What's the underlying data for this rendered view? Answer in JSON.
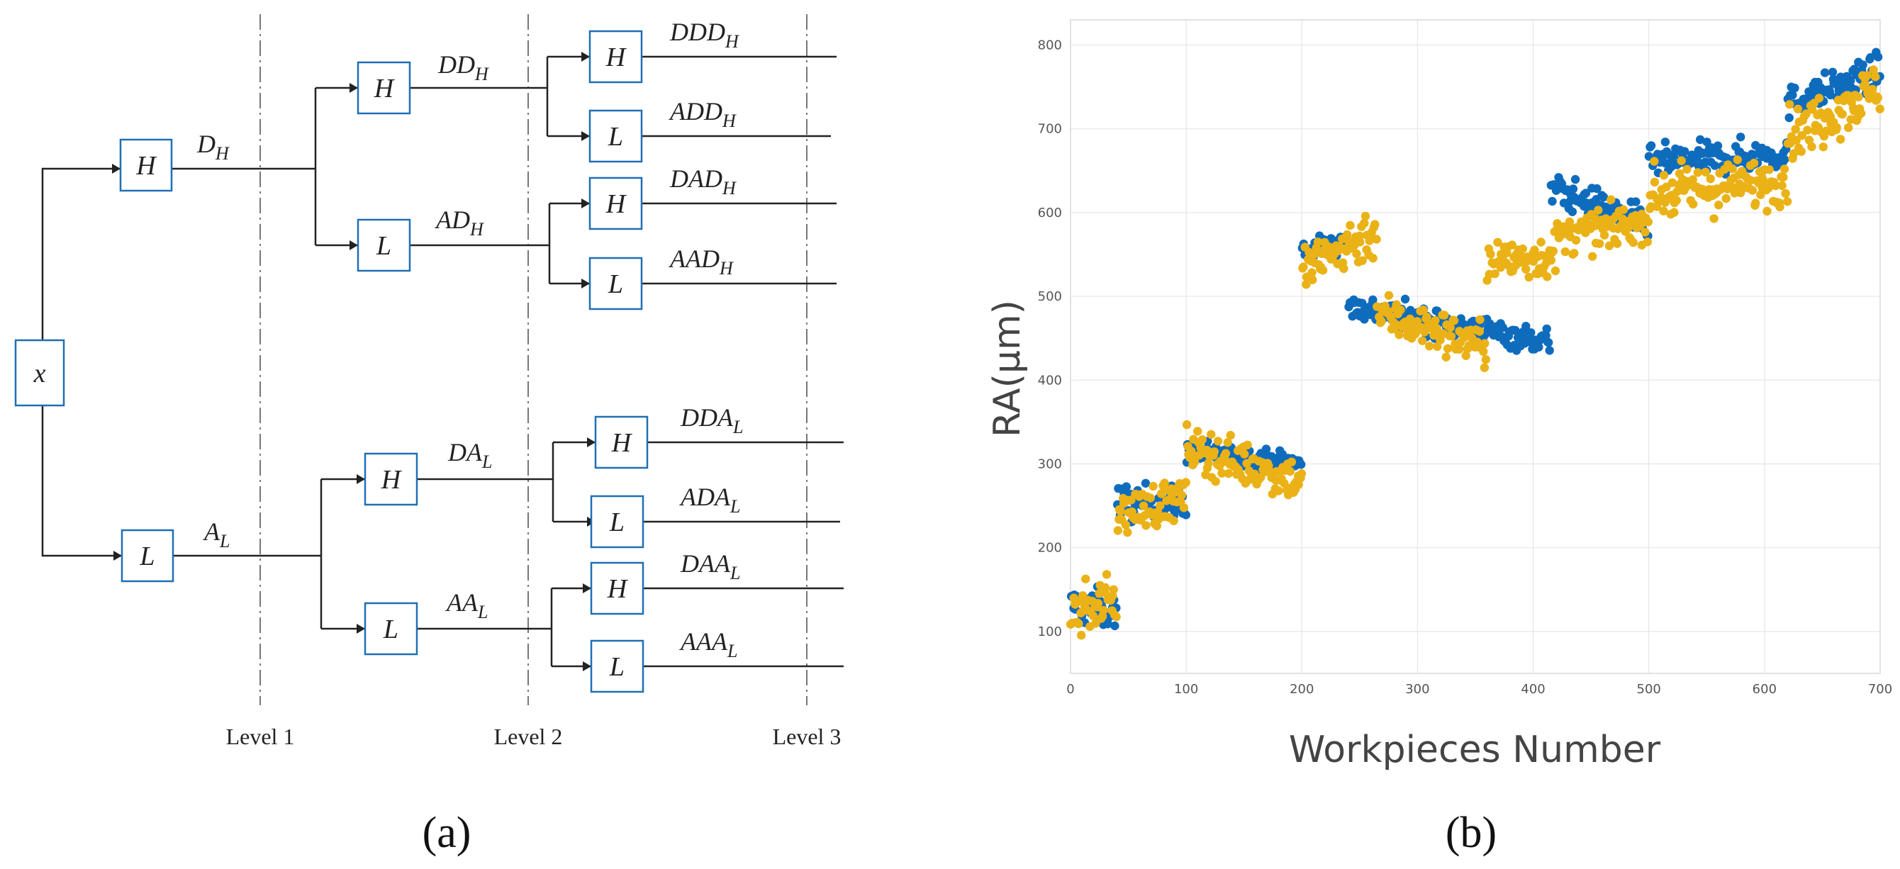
{
  "panel_a": {
    "label": "(a)",
    "nodes": [
      {
        "id": "x",
        "text": "x",
        "name": "node-x"
      },
      {
        "id": "h1",
        "text": "H",
        "name": "node-h-level1"
      },
      {
        "id": "l1",
        "text": "L",
        "name": "node-l-level1"
      },
      {
        "id": "h2a",
        "text": "H",
        "name": "node-h-level2-top"
      },
      {
        "id": "l2a",
        "text": "L",
        "name": "node-l-level2-top"
      },
      {
        "id": "h2b",
        "text": "H",
        "name": "node-h-level2-bottom"
      },
      {
        "id": "l2b",
        "text": "L",
        "name": "node-l-level2-bottom"
      },
      {
        "id": "h3a",
        "text": "H",
        "name": "node-h-level3-1"
      },
      {
        "id": "l3a",
        "text": "L",
        "name": "node-l-level3-2"
      },
      {
        "id": "h3b",
        "text": "H",
        "name": "node-h-level3-3"
      },
      {
        "id": "l3b",
        "text": "L",
        "name": "node-l-level3-4"
      },
      {
        "id": "h3c",
        "text": "H",
        "name": "node-h-level3-5"
      },
      {
        "id": "l3c",
        "text": "L",
        "name": "node-l-level3-6"
      },
      {
        "id": "h3d",
        "text": "H",
        "name": "node-h-level3-7"
      },
      {
        "id": "l3d",
        "text": "L",
        "name": "node-l-level3-8"
      }
    ],
    "coefficients": [
      {
        "base": "D",
        "sub": "H"
      },
      {
        "base": "A",
        "sub": "L"
      },
      {
        "base": "DD",
        "sub": "H"
      },
      {
        "base": "AD",
        "sub": "H"
      },
      {
        "base": "DA",
        "sub": "L"
      },
      {
        "base": "AA",
        "sub": "L"
      },
      {
        "base": "DDD",
        "sub": "H"
      },
      {
        "base": "ADD",
        "sub": "H"
      },
      {
        "base": "DAD",
        "sub": "H"
      },
      {
        "base": "AAD",
        "sub": "H"
      },
      {
        "base": "DDA",
        "sub": "L"
      },
      {
        "base": "ADA",
        "sub": "L"
      },
      {
        "base": "DAA",
        "sub": "L"
      },
      {
        "base": "AAA",
        "sub": "L"
      }
    ],
    "levels": [
      "Level 1",
      "Level 2",
      "Level 3"
    ]
  },
  "panel_b": {
    "label": "(b)",
    "chart_data": {
      "type": "scatter",
      "xlabel": "Workpieces Number",
      "ylabel": "RA(μm)",
      "xlim": [
        0,
        700
      ],
      "ylim": [
        50,
        830
      ],
      "xticks": [
        0,
        100,
        200,
        300,
        400,
        500,
        600,
        700
      ],
      "yticks": [
        100,
        200,
        300,
        400,
        500,
        600,
        700,
        800
      ],
      "grid": true,
      "colors": {
        "series1": "#0f6cbd",
        "series2": "#eab217"
      },
      "series": [
        {
          "color": "#0f6cbd",
          "segments": [
            {
              "x": [
                0,
                40
              ],
              "trend": [
                130,
                125
              ],
              "spread": 22
            },
            {
              "x": [
                40,
                100
              ],
              "trend": [
                255,
                250
              ],
              "spread": 20
            },
            {
              "x": [
                100,
                200
              ],
              "trend": [
                315,
                300
              ],
              "spread": 12
            },
            {
              "x": [
                200,
                240
              ],
              "trend": [
                555,
                565
              ],
              "spread": 12
            },
            {
              "x": [
                240,
                415
              ],
              "trend": [
                488,
                445
              ],
              "spread": 15
            },
            {
              "x": [
                415,
                500
              ],
              "trend": [
                630,
                585
              ],
              "spread": 18
            },
            {
              "x": [
                500,
                620
              ],
              "trend": [
                660,
                670
              ],
              "spread": 18
            },
            {
              "x": [
                620,
                700
              ],
              "trend": [
                730,
                770
              ],
              "spread": 18
            }
          ]
        },
        {
          "color": "#eab217",
          "segments": [
            {
              "x": [
                0,
                40
              ],
              "trend": [
                120,
                140
              ],
              "spread": 28
            },
            {
              "x": [
                40,
                100
              ],
              "trend": [
                240,
                260
              ],
              "spread": 25
            },
            {
              "x": [
                100,
                200
              ],
              "trend": [
                320,
                280
              ],
              "spread": 25
            },
            {
              "x": [
                200,
                265
              ],
              "trend": [
                530,
                580
              ],
              "spread": 30
            },
            {
              "x": [
                265,
                360
              ],
              "trend": [
                480,
                440
              ],
              "spread": 25
            },
            {
              "x": [
                360,
                420
              ],
              "trend": [
                540,
                550
              ],
              "spread": 25
            },
            {
              "x": [
                420,
                500
              ],
              "trend": [
                570,
                590
              ],
              "spread": 22
            },
            {
              "x": [
                500,
                620
              ],
              "trend": [
                620,
                640
              ],
              "spread": 28
            },
            {
              "x": [
                620,
                700
              ],
              "trend": [
                690,
                750
              ],
              "spread": 30
            }
          ]
        }
      ]
    }
  }
}
